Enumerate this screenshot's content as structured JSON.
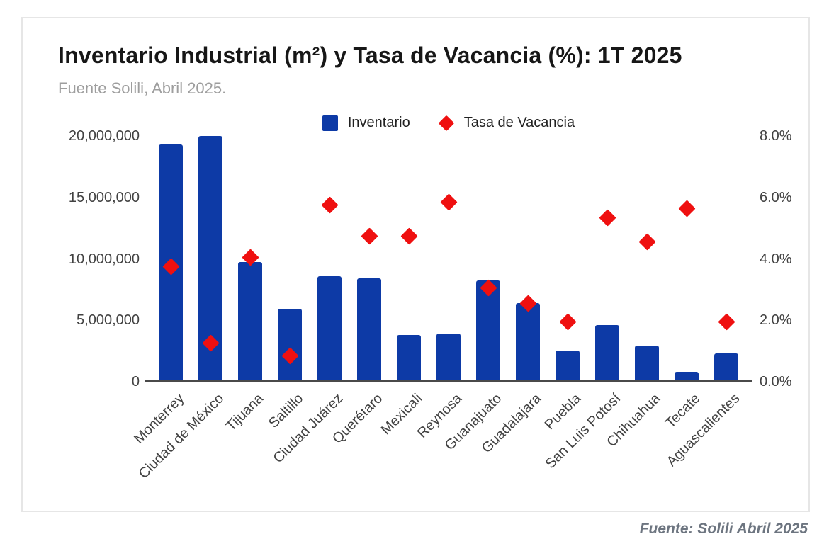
{
  "page": {
    "title": "Inventario Industrial (m²) y Tasa de Vacancia (%): 1T 2025",
    "subtitle": "Fuente Solili, Abril 2025.",
    "source_note": "Fuente: Solili Abril 2025"
  },
  "colors": {
    "bar": "#0d3aa6",
    "marker": "#ef1010",
    "axis_line": "#4a4a4a",
    "card_border": "#e6e6e6",
    "title_text": "#171717",
    "subtitle_text": "#9e9e9e",
    "tick_text": "#424242"
  },
  "chart_data": {
    "type": "bar",
    "subtype": "combo-bar-scatter",
    "title": "Inventario Industrial (m²) y Tasa de Vacancia (%): 1T 2025",
    "subtitle": "Fuente Solili, Abril 2025.",
    "source_note": "Fuente: Solili Abril 2025",
    "categories": [
      "Monterrey",
      "Ciudad de México",
      "Tijuana",
      "Saltillo",
      "Ciudad Juárez",
      "Querétaro",
      "Mexicali",
      "Reynosa",
      "Guanajuato",
      "Guadalajara",
      "Puebla",
      "San Luis Potosí",
      "Chihuahua",
      "Tecate",
      "Aguascalientes"
    ],
    "series": [
      {
        "name": "Inventario",
        "type": "bar",
        "yaxis": "left",
        "color": "#0d3aa6",
        "values": [
          19200000,
          19900000,
          9600000,
          5800000,
          8500000,
          8300000,
          3700000,
          3800000,
          8100000,
          6300000,
          2400000,
          4500000,
          2800000,
          700000,
          2200000
        ]
      },
      {
        "name": "Tasa de Vacancia",
        "type": "scatter",
        "marker": "diamond",
        "yaxis": "right",
        "color": "#ef1010",
        "values": [
          3.7,
          1.2,
          4.0,
          0.8,
          5.7,
          4.7,
          4.7,
          5.8,
          3.0,
          2.5,
          1.9,
          5.3,
          4.5,
          5.6,
          1.9
        ]
      }
    ],
    "left_axis": {
      "min": 0,
      "max": 20000000,
      "tick_labels": [
        "20,000,000",
        "15,000,000",
        "10,000,000",
        "5,000,000",
        "0"
      ],
      "tick_values": [
        20000000,
        15000000,
        10000000,
        5000000,
        0
      ]
    },
    "right_axis": {
      "min": 0,
      "max": 8,
      "tick_labels": [
        "8.0%",
        "6.0%",
        "4.0%",
        "2.0%",
        "0.0%"
      ],
      "tick_values": [
        8,
        6,
        4,
        2,
        0
      ]
    },
    "legend_position": "top-center",
    "grid": false
  }
}
